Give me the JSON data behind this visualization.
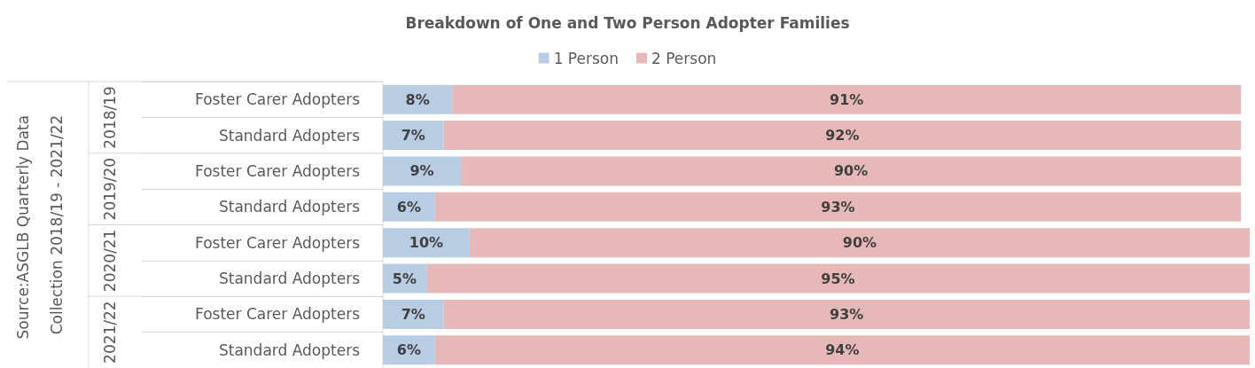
{
  "chart_data": {
    "type": "bar",
    "orientation": "horizontal",
    "stacked": true,
    "title": "Breakdown of One and Two Person Adopter Families",
    "categories": [
      "Foster Carer Adopters",
      "Standard Adopters",
      "Foster Carer Adopters",
      "Standard Adopters",
      "Foster Carer Adopters",
      "Standard Adopters",
      "Foster Carer Adopters",
      "Standard Adopters"
    ],
    "series": [
      {
        "name": "1 Person",
        "color": "#b8cce4",
        "values": [
          8,
          7,
          9,
          6,
          10,
          5,
          7,
          6
        ],
        "value_labels": [
          "8%",
          "7%",
          "9%",
          "6%",
          "10%",
          "5%",
          "7%",
          "6%"
        ]
      },
      {
        "name": "2 Person",
        "color": "#e6b9b8",
        "values": [
          91,
          92,
          90,
          93,
          90,
          95,
          93,
          94
        ],
        "value_labels": [
          "91%",
          "92%",
          "90%",
          "93%",
          "90%",
          "95%",
          "93%",
          "94%"
        ]
      }
    ],
    "xlim": [
      0,
      100
    ],
    "tick_labels": "y",
    "legend": "top",
    "annotations": [
      "Source:ASGLB Quarterly Data Collection 2018/19 - 2021/22",
      "2018/19",
      "2019/20",
      "2020/21",
      "2021/22"
    ]
  }
}
